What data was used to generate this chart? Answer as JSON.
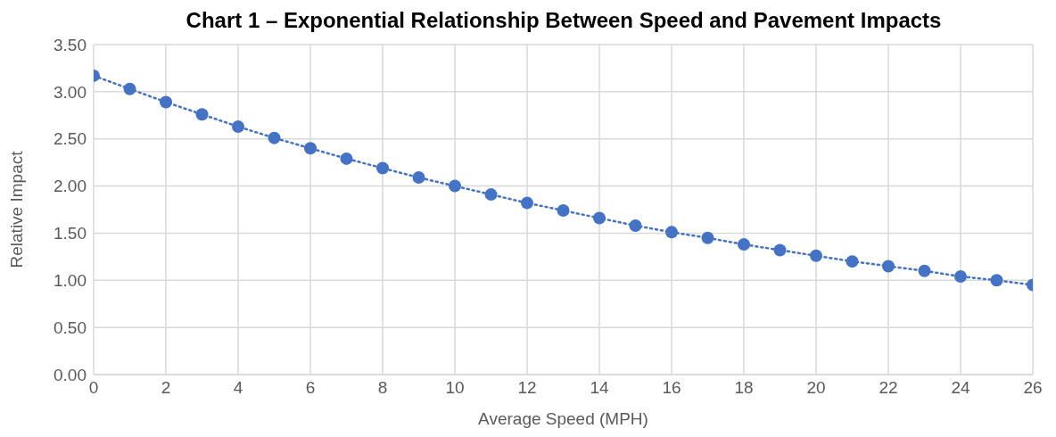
{
  "chart_data": {
    "type": "line",
    "title": "Chart 1 – Exponential Relationship Between Speed and Pavement Impacts",
    "xlabel": "Average Speed (MPH)",
    "ylabel": "Relative Impact",
    "x": [
      0,
      1,
      2,
      3,
      4,
      5,
      6,
      7,
      8,
      9,
      10,
      11,
      12,
      13,
      14,
      15,
      16,
      17,
      18,
      19,
      20,
      21,
      22,
      23,
      24,
      25,
      26
    ],
    "series": [
      {
        "color": "#4472c4",
        "values": [
          3.17,
          3.03,
          2.89,
          2.76,
          2.63,
          2.51,
          2.4,
          2.29,
          2.19,
          2.09,
          2.0,
          1.91,
          1.82,
          1.74,
          1.66,
          1.58,
          1.51,
          1.45,
          1.38,
          1.32,
          1.26,
          1.2,
          1.15,
          1.1,
          1.04,
          1.0,
          0.95
        ]
      }
    ],
    "xlim": [
      0,
      26
    ],
    "xticks": [
      0,
      2,
      4,
      6,
      8,
      10,
      12,
      14,
      16,
      18,
      20,
      22,
      24,
      26
    ],
    "ylim": [
      0,
      3.5
    ],
    "yticks": [
      {
        "value": 0,
        "label": "0.00"
      },
      {
        "value": 0.5,
        "label": "0.50"
      },
      {
        "value": 1,
        "label": "1.00"
      },
      {
        "value": 1.5,
        "label": "1.50"
      },
      {
        "value": 2,
        "label": "2.00"
      },
      {
        "value": 2.5,
        "label": "2.50"
      },
      {
        "value": 3,
        "label": "3.00"
      },
      {
        "value": 3.5,
        "label": "3.50"
      }
    ],
    "grid": true,
    "marker": "circle",
    "line_style": "dotted"
  }
}
